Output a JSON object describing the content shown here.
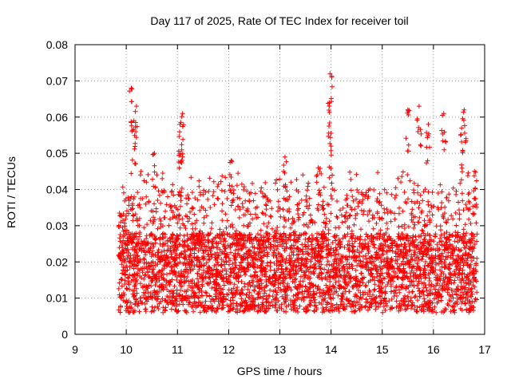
{
  "chart_data": {
    "type": "scatter",
    "title": "Day 117 of 2025, Rate Of TEC Index for receiver toil",
    "xlabel": "GPS time / hours",
    "ylabel": "ROTI / TECUs",
    "xlim": [
      9,
      17
    ],
    "ylim": [
      0,
      0.08
    ],
    "xticks": [
      "9",
      "10",
      "11",
      "12",
      "13",
      "14",
      "15",
      "16",
      "17"
    ],
    "yticks": [
      "0",
      "0.01",
      "0.02",
      "0.03",
      "0.04",
      "0.05",
      "0.06",
      "0.07",
      "0.08"
    ],
    "grid": true,
    "marker": "+",
    "color": "#ff0000",
    "series": [
      {
        "name": "ROTI",
        "x_range": [
          9.85,
          16.85
        ],
        "baseline_range": [
          0.005,
          0.035
        ],
        "points_estimated": 5000,
        "peaks": [
          {
            "x": 10.1,
            "y": 0.068
          },
          {
            "x": 10.15,
            "y": 0.059
          },
          {
            "x": 10.2,
            "y": 0.063
          },
          {
            "x": 10.55,
            "y": 0.05
          },
          {
            "x": 11.05,
            "y": 0.058
          },
          {
            "x": 11.1,
            "y": 0.061
          },
          {
            "x": 11.05,
            "y": 0.05
          },
          {
            "x": 12.05,
            "y": 0.048
          },
          {
            "x": 13.1,
            "y": 0.049
          },
          {
            "x": 13.75,
            "y": 0.046
          },
          {
            "x": 13.98,
            "y": 0.072
          },
          {
            "x": 13.97,
            "y": 0.064
          },
          {
            "x": 14.0,
            "y": 0.052
          },
          {
            "x": 15.5,
            "y": 0.062
          },
          {
            "x": 15.72,
            "y": 0.063
          },
          {
            "x": 15.9,
            "y": 0.058
          },
          {
            "x": 16.2,
            "y": 0.061
          },
          {
            "x": 16.6,
            "y": 0.062
          },
          {
            "x": 16.55,
            "y": 0.057
          },
          {
            "x": 16.8,
            "y": 0.045
          }
        ]
      }
    ]
  }
}
